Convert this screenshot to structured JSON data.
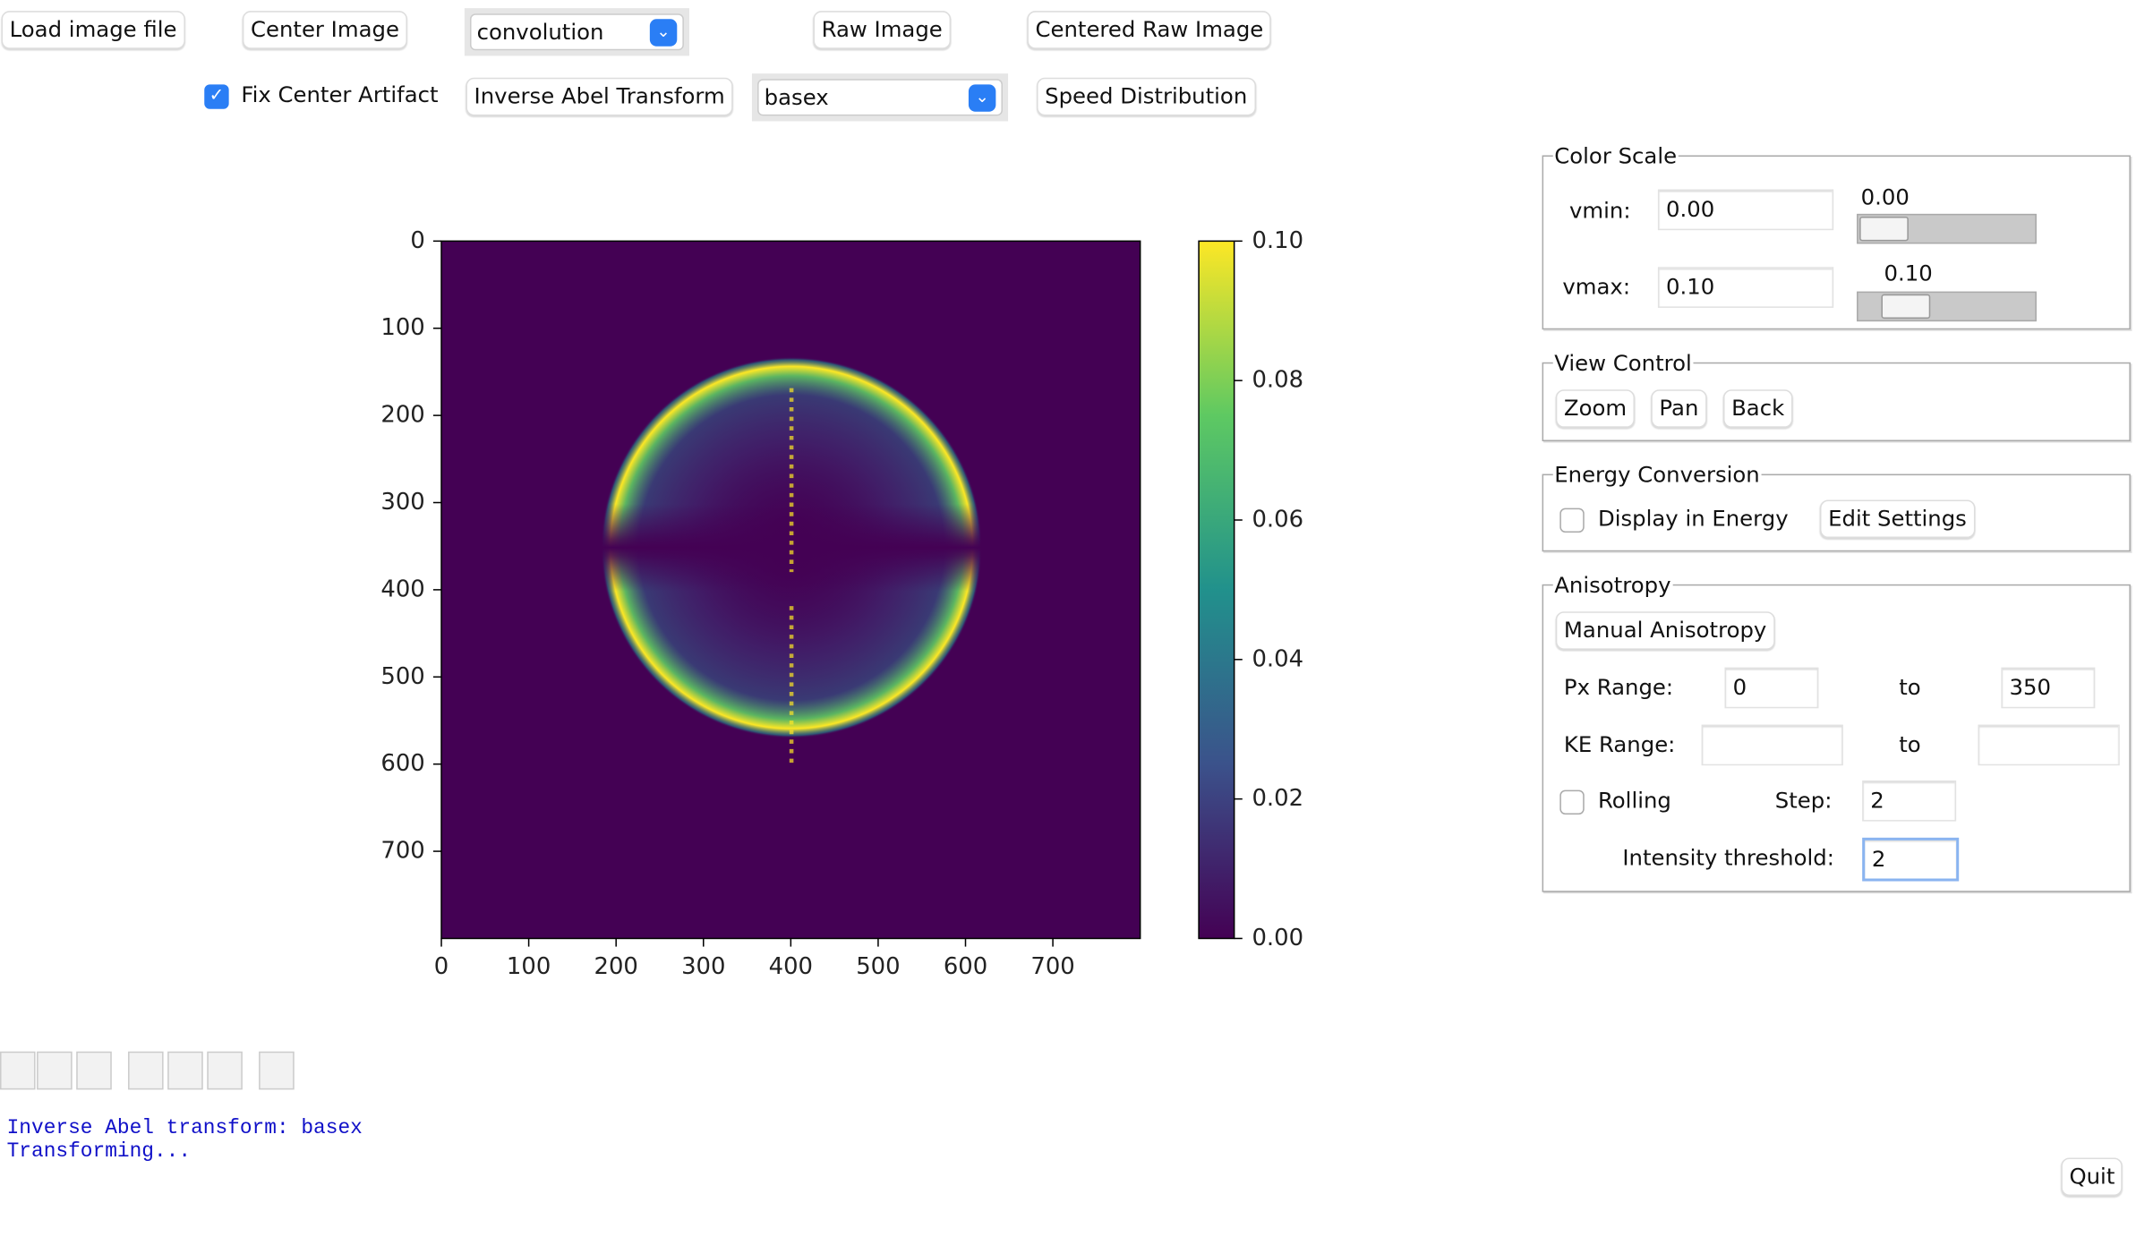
{
  "toolbar": {
    "load": "Load image file",
    "center": "Center Image",
    "center_method": "convolution",
    "raw": "Raw Image",
    "centered_raw": "Centered Raw Image",
    "fix_center": "Fix Center Artifact",
    "fix_center_checked": true,
    "inverse": "Inverse Abel Transform",
    "transform_method": "basex",
    "speed": "Speed Distribution"
  },
  "chart_data": {
    "type": "image",
    "xlim": [
      0,
      800
    ],
    "ylim": [
      800,
      0
    ],
    "xticks": [
      0,
      100,
      200,
      300,
      400,
      500,
      600,
      700
    ],
    "yticks": [
      0,
      100,
      200,
      300,
      400,
      500,
      600,
      700
    ],
    "colorbar": {
      "clim": [
        0,
        0.1
      ],
      "ticks": [
        {
          "value": 0,
          "label": "0.00"
        },
        {
          "value": 0.02,
          "label": "0.02"
        },
        {
          "value": 0.04,
          "label": "0.04"
        },
        {
          "value": 0.06,
          "label": "0.06"
        },
        {
          "value": 0.08,
          "label": "0.08"
        },
        {
          "value": 0.1,
          "label": "0.10"
        }
      ]
    }
  },
  "color_scale": {
    "title": "Color Scale",
    "vmin_label": "vmin:",
    "vmin": "0.00",
    "vmin_slider": "0.00",
    "vmax_label": "vmax:",
    "vmax": "0.10",
    "vmax_slider": "0.10"
  },
  "view_control": {
    "title": "View Control",
    "zoom": "Zoom",
    "pan": "Pan",
    "back": "Back"
  },
  "energy": {
    "title": "Energy Conversion",
    "display": "Display in Energy",
    "display_checked": false,
    "edit": "Edit Settings"
  },
  "anisotropy": {
    "title": "Anisotropy",
    "manual": "Manual Anisotropy",
    "px_label": "Px Range:",
    "px_from": "0",
    "px_to_label": "to",
    "px_to": "350",
    "ke_label": "KE Range:",
    "ke_to_label": "to",
    "rolling": "Rolling",
    "rolling_checked": false,
    "step_label": "Step:",
    "step": "2",
    "threshold_label": "Intensity threshold:",
    "threshold": "2"
  },
  "status": [
    "Inverse Abel transform: basex",
    "Transforming..."
  ],
  "quit": "Quit"
}
